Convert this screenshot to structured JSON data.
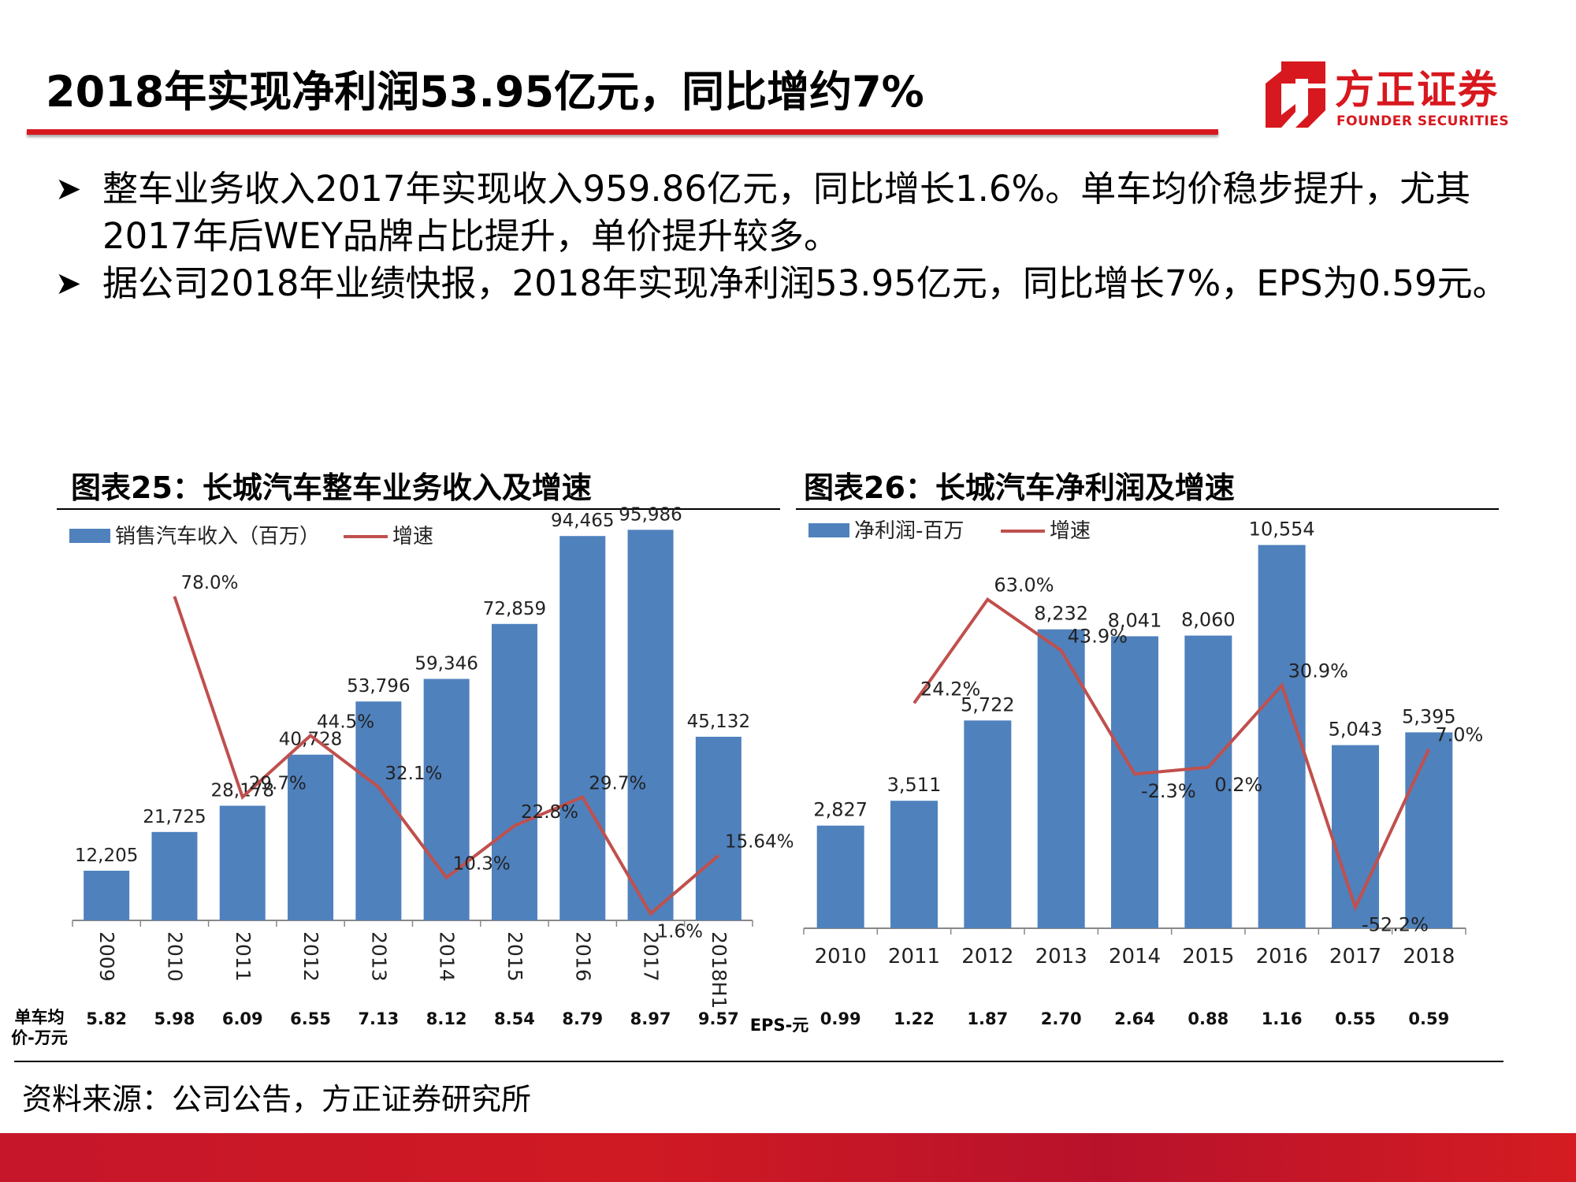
{
  "header": {
    "title": "2018年实现净利润53.95亿元，同比增约7%",
    "logo_cn": "方正证券",
    "logo_en": "FOUNDER SECURITIES"
  },
  "bullets": [
    "整车业务收入2017年实现收入959.86亿元，同比增长1.6%。单车均价稳步提升，尤其2017年后WEY品牌占比提升，单价提升较多。",
    "据公司2018年业绩快报，2018年实现净利润53.95亿元，同比增长7%，EPS为0.59元。"
  ],
  "colors": {
    "bar": "#4f81bd",
    "line": "#c0504d",
    "accent": "#d7181e"
  },
  "chart_data": [
    {
      "type": "bar",
      "title": "图表25：长城汽车整车业务收入及增速",
      "categories": [
        "2009",
        "2010",
        "2011",
        "2012",
        "2013",
        "2014",
        "2015",
        "2016",
        "2017",
        "2018H1"
      ],
      "series": [
        {
          "name": "销售汽车收入（百万）",
          "type": "bar",
          "values": [
            12205,
            21725,
            28178,
            40728,
            53796,
            59346,
            72859,
            94465,
            95986,
            45132
          ],
          "labels": [
            "12,205",
            "21,725",
            "28,178",
            "40,728",
            "53,796",
            "59,346",
            "72,859",
            "94,465",
            "95,986",
            "45,132"
          ]
        },
        {
          "name": "增速",
          "type": "line",
          "values": [
            null,
            78.0,
            29.7,
            44.5,
            32.1,
            10.3,
            22.8,
            29.7,
            1.6,
            15.64
          ],
          "labels": [
            "",
            "78.0%",
            "29.7%",
            "44.5%",
            "32.1%",
            "10.3%",
            "22.8%",
            "29.7%",
            "1.6%",
            "15.64%"
          ]
        }
      ],
      "ylim": [
        0,
        110000
      ],
      "growth_range": [
        0,
        85
      ],
      "table_row": {
        "label": "单车均价-万元",
        "values": [
          "5.82",
          "5.98",
          "6.09",
          "6.55",
          "7.13",
          "8.12",
          "8.54",
          "8.79",
          "8.97",
          "9.57"
        ]
      },
      "legend": "top-left"
    },
    {
      "type": "bar",
      "title": "图表26：长城汽车净利润及增速",
      "categories": [
        "2010",
        "2011",
        "2012",
        "2013",
        "2014",
        "2015",
        "2016",
        "2017",
        "2018"
      ],
      "series": [
        {
          "name": "净利润-百万",
          "type": "bar",
          "values": [
            2827,
            3511,
            5722,
            8232,
            8041,
            8060,
            10554,
            5043,
            5395
          ],
          "labels": [
            "2,827",
            "3,511",
            "5,722",
            "8,232",
            "8,041",
            "8,060",
            "10,554",
            "5,043",
            "5,395"
          ]
        },
        {
          "name": "增速",
          "type": "line",
          "values": [
            null,
            24.2,
            63.0,
            43.9,
            -2.3,
            0.2,
            30.9,
            -52.2,
            7.0
          ],
          "labels": [
            "",
            "24.2%",
            "63.0%",
            "43.9%",
            "-2.3%",
            "0.2%",
            "30.9%",
            "-52.2%",
            "7.0%"
          ]
        }
      ],
      "ylim": [
        0,
        12000
      ],
      "growth_range": [
        -60,
        75
      ],
      "table_row": {
        "label": "EPS-元",
        "values": [
          "0.99",
          "1.22",
          "1.87",
          "2.70",
          "2.64",
          "0.88",
          "1.16",
          "0.55",
          "0.59"
        ]
      },
      "legend": "top-left"
    }
  ],
  "source": "资料来源：公司公告，方正证券研究所"
}
